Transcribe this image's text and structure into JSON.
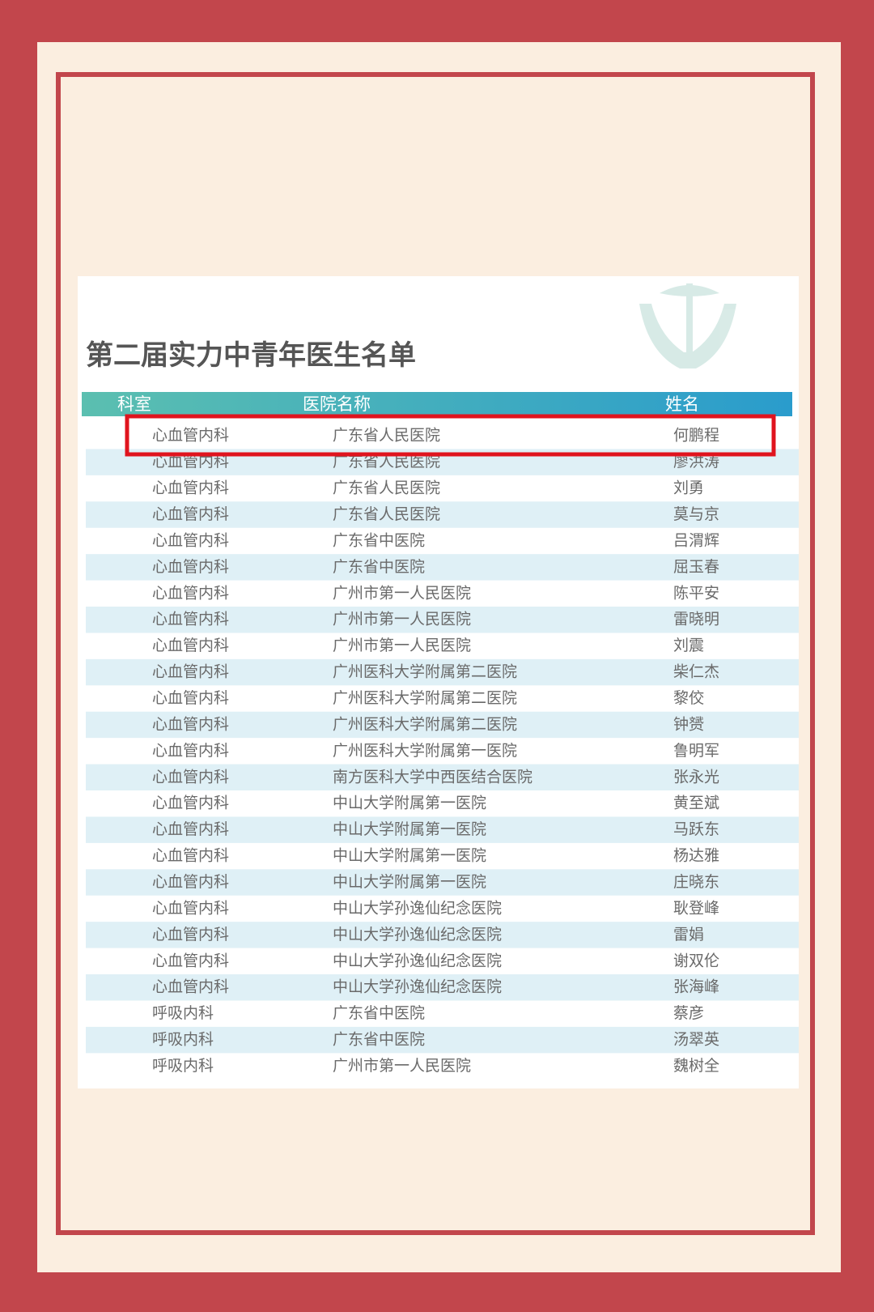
{
  "title": "第二届实力中青年医生名单",
  "table": {
    "columns": [
      "科室",
      "医院名称",
      "姓名"
    ],
    "rows": [
      [
        "心血管内科",
        "广东省人民医院",
        "何鹏程"
      ],
      [
        "心血管内科",
        "广东省人民医院",
        "廖洪涛"
      ],
      [
        "心血管内科",
        "广东省人民医院",
        "刘勇"
      ],
      [
        "心血管内科",
        "广东省人民医院",
        "莫与京"
      ],
      [
        "心血管内科",
        "广东省中医院",
        "吕渭辉"
      ],
      [
        "心血管内科",
        "广东省中医院",
        "屈玉春"
      ],
      [
        "心血管内科",
        "广州市第一人民医院",
        "陈平安"
      ],
      [
        "心血管内科",
        "广州市第一人民医院",
        "雷晓明"
      ],
      [
        "心血管内科",
        "广州市第一人民医院",
        "刘震"
      ],
      [
        "心血管内科",
        "广州医科大学附属第二医院",
        "柴仁杰"
      ],
      [
        "心血管内科",
        "广州医科大学附属第二医院",
        "黎佼"
      ],
      [
        "心血管内科",
        "广州医科大学附属第二医院",
        "钟赟"
      ],
      [
        "心血管内科",
        "广州医科大学附属第一医院",
        "鲁明军"
      ],
      [
        "心血管内科",
        "南方医科大学中西医结合医院",
        "张永光"
      ],
      [
        "心血管内科",
        "中山大学附属第一医院",
        "黄至斌"
      ],
      [
        "心血管内科",
        "中山大学附属第一医院",
        "马跃东"
      ],
      [
        "心血管内科",
        "中山大学附属第一医院",
        "杨达雅"
      ],
      [
        "心血管内科",
        "中山大学附属第一医院",
        "庄晓东"
      ],
      [
        "心血管内科",
        "中山大学孙逸仙纪念医院",
        "耿登峰"
      ],
      [
        "心血管内科",
        "中山大学孙逸仙纪念医院",
        "雷娟"
      ],
      [
        "心血管内科",
        "中山大学孙逸仙纪念医院",
        "谢双伦"
      ],
      [
        "心血管内科",
        "中山大学孙逸仙纪念医院",
        "张海峰"
      ],
      [
        "呼吸内科",
        "广东省中医院",
        "蔡彦"
      ],
      [
        "呼吸内科",
        "广东省中医院",
        "汤翠英"
      ],
      [
        "呼吸内科",
        "广州市第一人民医院",
        "魏树全"
      ]
    ]
  }
}
